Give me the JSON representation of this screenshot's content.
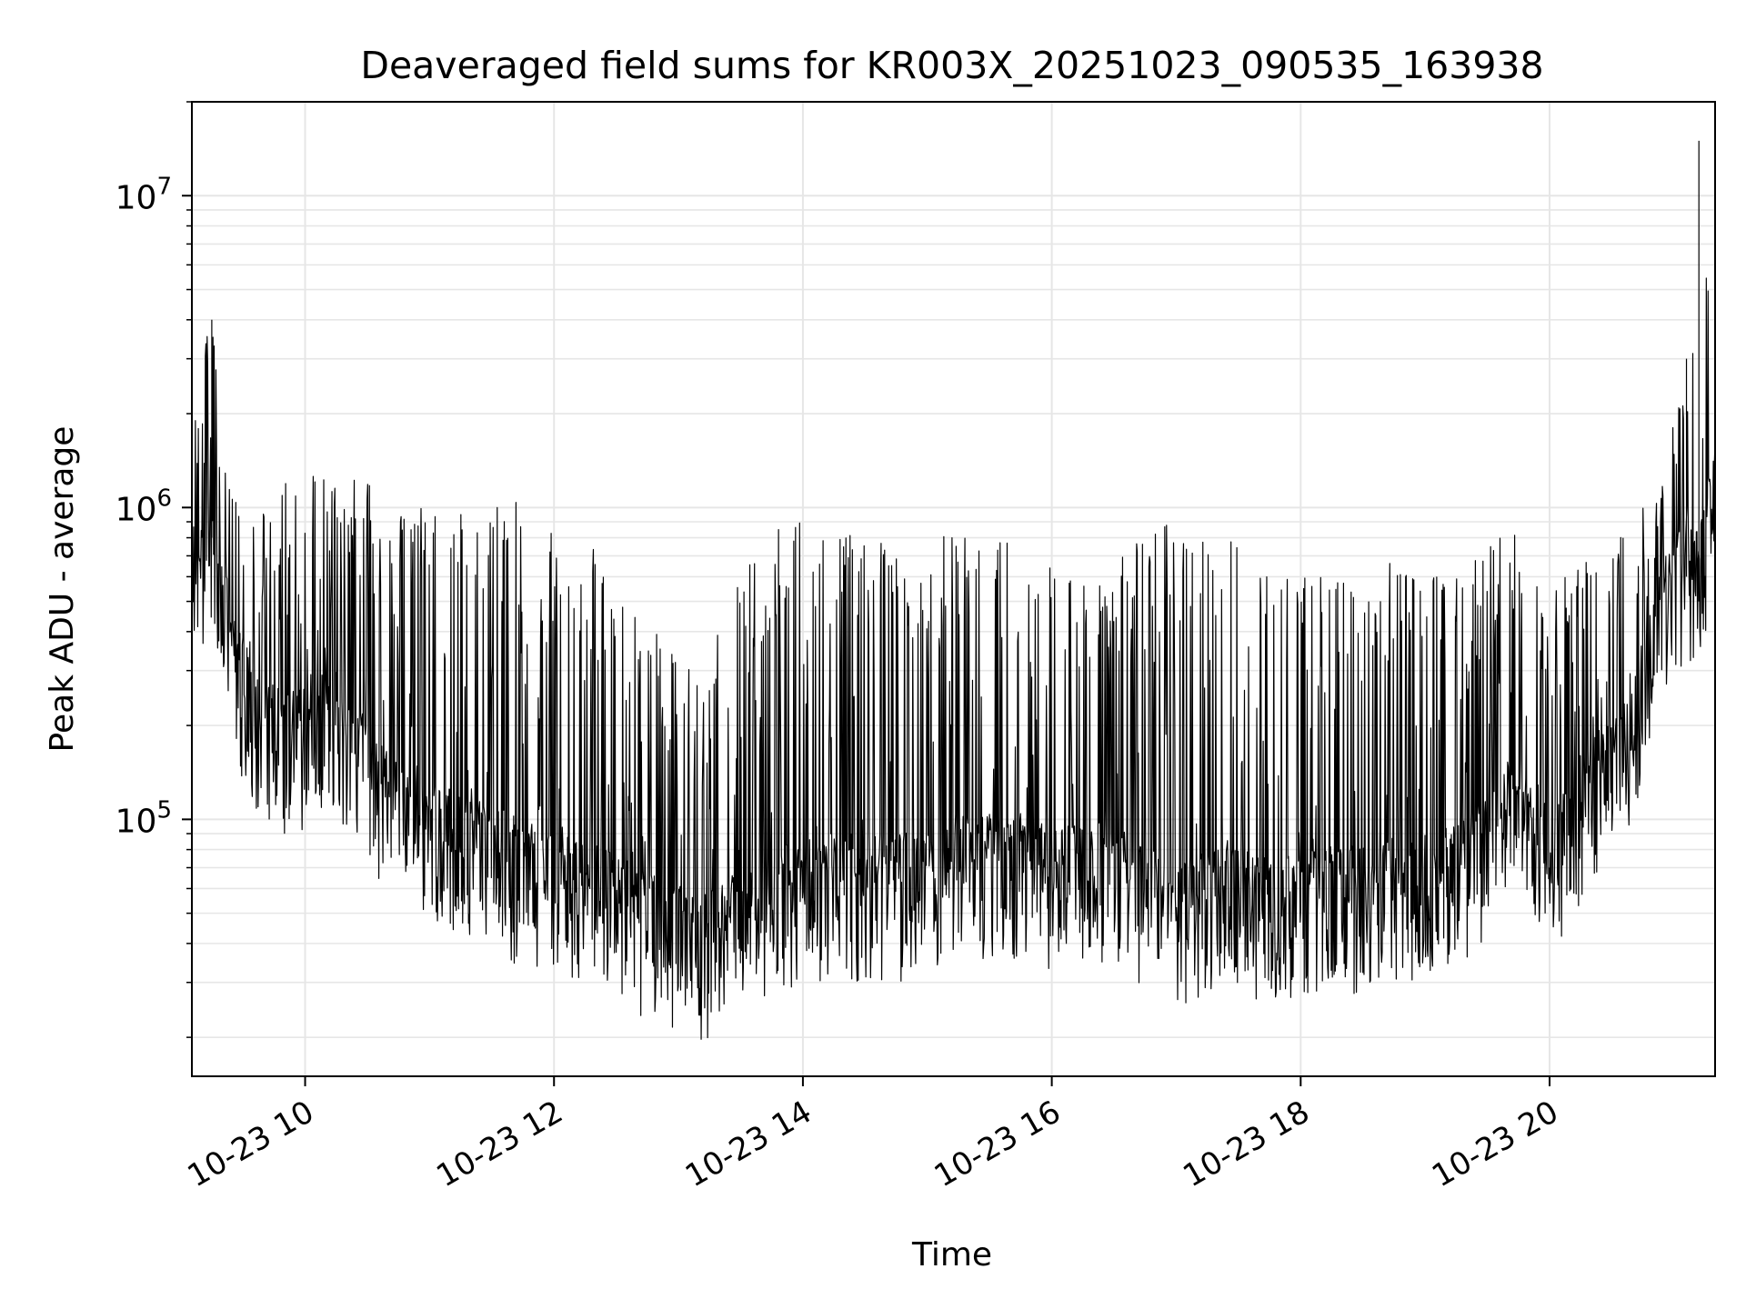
{
  "chart_data": {
    "type": "line",
    "title": "Deaveraged field sums for KR003X_20251023_090535_163938",
    "xlabel": "Time",
    "ylabel": "Peak ADU - average",
    "yscale": "log",
    "xlim_hours": [
      9.09,
      21.33
    ],
    "ylim": [
      15000,
      20000000
    ],
    "grid": true,
    "line_color": "#000000",
    "grid_color": "#e6e6e6",
    "x_ticks": [
      {
        "hour": 10,
        "label": "10-23 10"
      },
      {
        "hour": 12,
        "label": "10-23 12"
      },
      {
        "hour": 14,
        "label": "10-23 14"
      },
      {
        "hour": 16,
        "label": "10-23 16"
      },
      {
        "hour": 18,
        "label": "10-23 18"
      },
      {
        "hour": 20,
        "label": "10-23 20"
      }
    ],
    "y_ticks": [
      {
        "value": 100000,
        "base": "10",
        "exp": "5"
      },
      {
        "value": 1000000,
        "base": "10",
        "exp": "6"
      },
      {
        "value": 10000000,
        "base": "10",
        "exp": "7"
      }
    ],
    "series": [
      {
        "name": "Peak ADU - average",
        "envelope": [
          {
            "hour": 9.09,
            "base": 400000,
            "peak": 2500000
          },
          {
            "hour": 9.25,
            "base": 800000,
            "peak": 4000000
          },
          {
            "hour": 9.4,
            "base": 300000,
            "peak": 1200000
          },
          {
            "hour": 9.6,
            "base": 180000,
            "peak": 900000
          },
          {
            "hour": 9.9,
            "base": 150000,
            "peak": 1300000
          },
          {
            "hour": 10.2,
            "base": 200000,
            "peak": 1300000
          },
          {
            "hour": 10.5,
            "base": 130000,
            "peak": 1200000
          },
          {
            "hour": 10.8,
            "base": 90000,
            "peak": 1000000
          },
          {
            "hour": 11.2,
            "base": 75000,
            "peak": 1000000
          },
          {
            "hour": 11.6,
            "base": 65000,
            "peak": 1100000
          },
          {
            "hour": 12.0,
            "base": 55000,
            "peak": 900000
          },
          {
            "hour": 12.4,
            "base": 50000,
            "peak": 700000
          },
          {
            "hour": 12.8,
            "base": 40000,
            "peak": 400000
          },
          {
            "hour": 13.2,
            "base": 35000,
            "peak": 300000
          },
          {
            "hour": 13.5,
            "base": 45000,
            "peak": 600000
          },
          {
            "hour": 13.8,
            "base": 50000,
            "peak": 900000
          },
          {
            "hour": 14.2,
            "base": 55000,
            "peak": 900000
          },
          {
            "hour": 14.6,
            "base": 55000,
            "peak": 800000
          },
          {
            "hour": 15.0,
            "base": 55000,
            "peak": 800000
          },
          {
            "hour": 15.4,
            "base": 65000,
            "peak": 900000
          },
          {
            "hour": 15.8,
            "base": 60000,
            "peak": 700000
          },
          {
            "hour": 16.2,
            "base": 60000,
            "peak": 600000
          },
          {
            "hour": 16.6,
            "base": 55000,
            "peak": 800000
          },
          {
            "hour": 17.0,
            "base": 45000,
            "peak": 900000
          },
          {
            "hour": 17.4,
            "base": 50000,
            "peak": 800000
          },
          {
            "hour": 17.8,
            "base": 45000,
            "peak": 600000
          },
          {
            "hour": 18.2,
            "base": 50000,
            "peak": 600000
          },
          {
            "hour": 18.6,
            "base": 50000,
            "peak": 700000
          },
          {
            "hour": 19.0,
            "base": 55000,
            "peak": 600000
          },
          {
            "hour": 19.4,
            "base": 65000,
            "peak": 700000
          },
          {
            "hour": 19.7,
            "base": 100000,
            "peak": 900000
          },
          {
            "hour": 20.0,
            "base": 60000,
            "peak": 500000
          },
          {
            "hour": 20.3,
            "base": 110000,
            "peak": 800000
          },
          {
            "hour": 20.6,
            "base": 140000,
            "peak": 900000
          },
          {
            "hour": 20.9,
            "base": 400000,
            "peak": 1200000
          },
          {
            "hour": 21.1,
            "base": 600000,
            "peak": 3000000
          },
          {
            "hour": 21.2,
            "base": 500000,
            "peak": 15000000
          },
          {
            "hour": 21.33,
            "base": 1000000,
            "peak": 2200000
          }
        ]
      }
    ]
  }
}
